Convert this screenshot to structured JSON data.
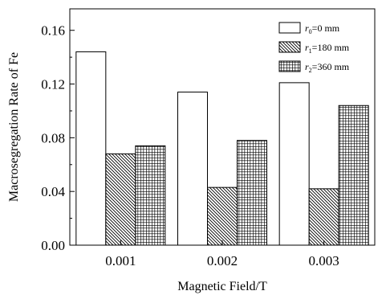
{
  "chart_data": {
    "type": "bar",
    "categories": [
      "0.001",
      "0.002",
      "0.003"
    ],
    "series": [
      {
        "name": "r0=0 mm",
        "label_main": "r",
        "label_sub": "0",
        "label_rest": "=0 mm",
        "fill": "empty",
        "values": [
          0.144,
          0.114,
          0.121
        ]
      },
      {
        "name": "r1=180 mm",
        "label_main": "r",
        "label_sub": "1",
        "label_rest": "=180 mm",
        "fill": "diagonal-hatch",
        "values": [
          0.068,
          0.043,
          0.042
        ]
      },
      {
        "name": "r2=360 mm",
        "label_main": "r",
        "label_sub": "2",
        "label_rest": "=360 mm",
        "fill": "crosshatch",
        "values": [
          0.074,
          0.078,
          0.104
        ]
      }
    ],
    "xlabel": "Magnetic Field/T",
    "ylabel": "Macrosegregation Rate of Fe",
    "ylim": [
      0,
      0.176
    ],
    "yticks": [
      "0.00",
      "0.04",
      "0.08",
      "0.12",
      "0.16"
    ],
    "ytick_values": [
      0,
      0.04,
      0.08,
      0.12,
      0.16
    ],
    "legend_position": "top-right",
    "grid": false
  }
}
